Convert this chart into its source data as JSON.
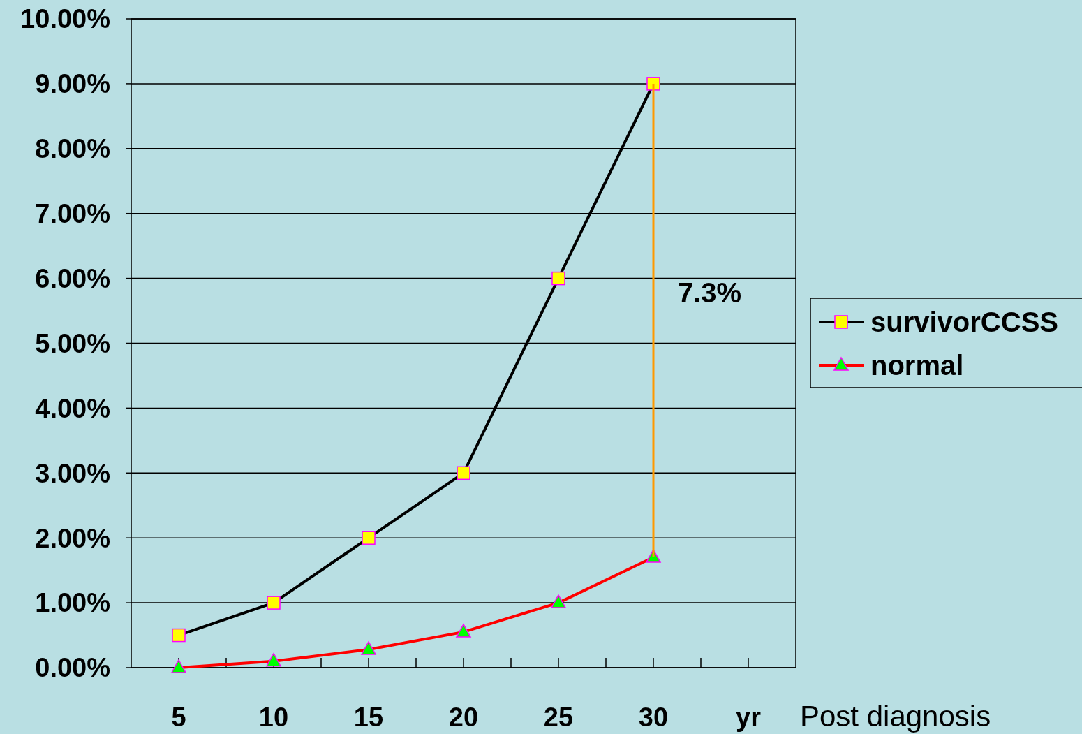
{
  "chart_data": {
    "type": "line",
    "xlabel": "Post diagnosis",
    "categories": [
      "5",
      "10",
      "15",
      "20",
      "25",
      "30",
      "yr"
    ],
    "series": [
      {
        "name": "survivorCCSS",
        "color": "#000000",
        "marker": "square",
        "values": [
          0.5,
          1,
          2,
          3,
          6,
          9,
          null
        ]
      },
      {
        "name": "normal",
        "color": "#ff0000",
        "marker": "triangle",
        "values": [
          0,
          0.1,
          0.28,
          0.55,
          1,
          1.7,
          null
        ]
      },
      {
        "color": "#ff9900",
        "marker": "none",
        "x": [
          "30",
          "30"
        ],
        "values": [
          1.7,
          9
        ]
      }
    ],
    "ylim": [
      0,
      10
    ],
    "yticks": [
      {
        "value": 0,
        "label": "0.00%"
      },
      {
        "value": 1,
        "label": "1.00%"
      },
      {
        "value": 2,
        "label": "2.00%"
      },
      {
        "value": 3,
        "label": "3.00%"
      },
      {
        "value": 4,
        "label": "4.00%"
      },
      {
        "value": 5,
        "label": "5.00%"
      },
      {
        "value": 6,
        "label": "6.00%"
      },
      {
        "value": 7,
        "label": "7.00%"
      },
      {
        "value": 8,
        "label": "8.00%"
      },
      {
        "value": 9,
        "label": "9.00%"
      },
      {
        "value": 10,
        "label": "10.00%"
      }
    ],
    "grid": "y",
    "legend": "right",
    "annotations": [
      "7.3%"
    ]
  }
}
